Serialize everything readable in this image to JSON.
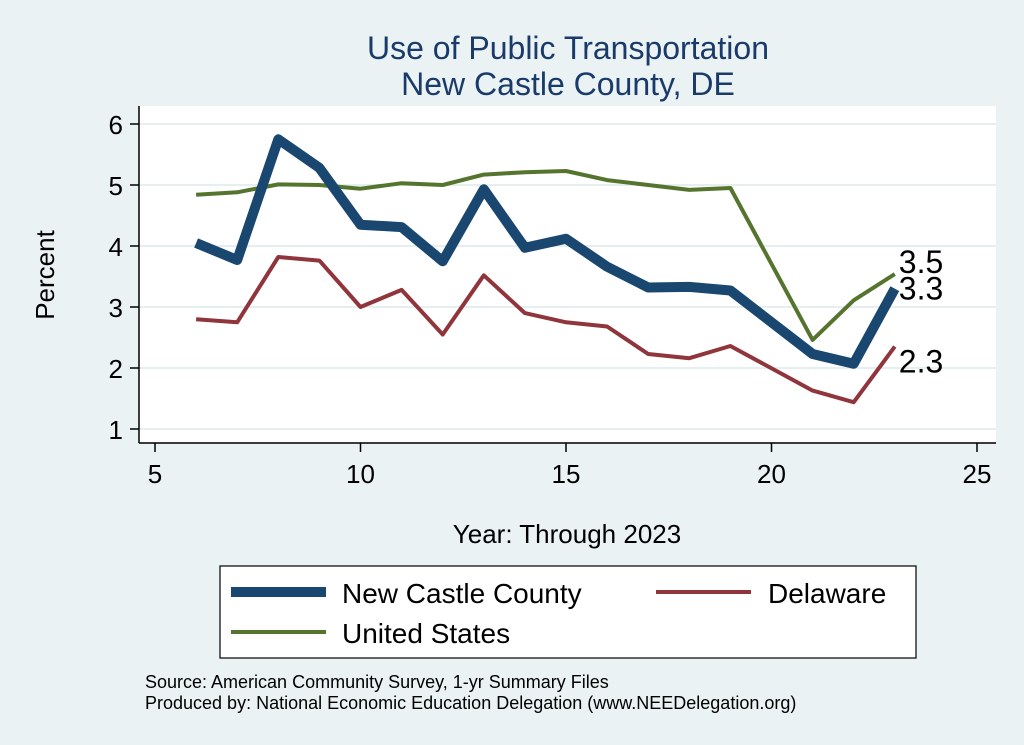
{
  "chart_data": {
    "type": "line",
    "title": "Use of Public Transportation",
    "subtitle": "New Castle County, DE",
    "xlabel": "Year: Through 2023",
    "ylabel": "Percent",
    "xlim": [
      5,
      25
    ],
    "ylim": [
      1,
      6
    ],
    "xticks": [
      5,
      10,
      15,
      20,
      25
    ],
    "yticks": [
      1,
      2,
      3,
      4,
      5,
      6
    ],
    "x": [
      6,
      7,
      8,
      9,
      10,
      11,
      12,
      13,
      14,
      15,
      16,
      17,
      18,
      19,
      21,
      22,
      23
    ],
    "series": [
      {
        "name": "New Castle County",
        "color": "#1a476f",
        "values": [
          4.05,
          3.77,
          5.75,
          5.28,
          4.35,
          4.31,
          3.75,
          4.93,
          3.97,
          4.12,
          3.66,
          3.32,
          3.33,
          3.27,
          2.23,
          2.07,
          3.3
        ],
        "end_label": "3.3"
      },
      {
        "name": "Delaware",
        "color": "#90353b",
        "values": [
          2.8,
          2.75,
          3.82,
          3.76,
          3.0,
          3.28,
          2.55,
          3.52,
          2.9,
          2.75,
          2.68,
          2.23,
          2.16,
          2.36,
          1.63,
          1.44,
          2.35
        ],
        "end_label": "2.3"
      },
      {
        "name": "United States",
        "color": "#55752f",
        "values": [
          4.84,
          4.88,
          5.01,
          5.0,
          4.94,
          5.03,
          5.0,
          5.17,
          5.21,
          5.23,
          5.08,
          5.0,
          4.92,
          4.95,
          2.46,
          3.11,
          3.54
        ],
        "end_label": "3.5"
      }
    ],
    "source": "Source: American Community Survey, 1-yr Summary Files",
    "producer": "Produced by: National Economic Education Delegation (www.NEEDelegation.org)"
  }
}
